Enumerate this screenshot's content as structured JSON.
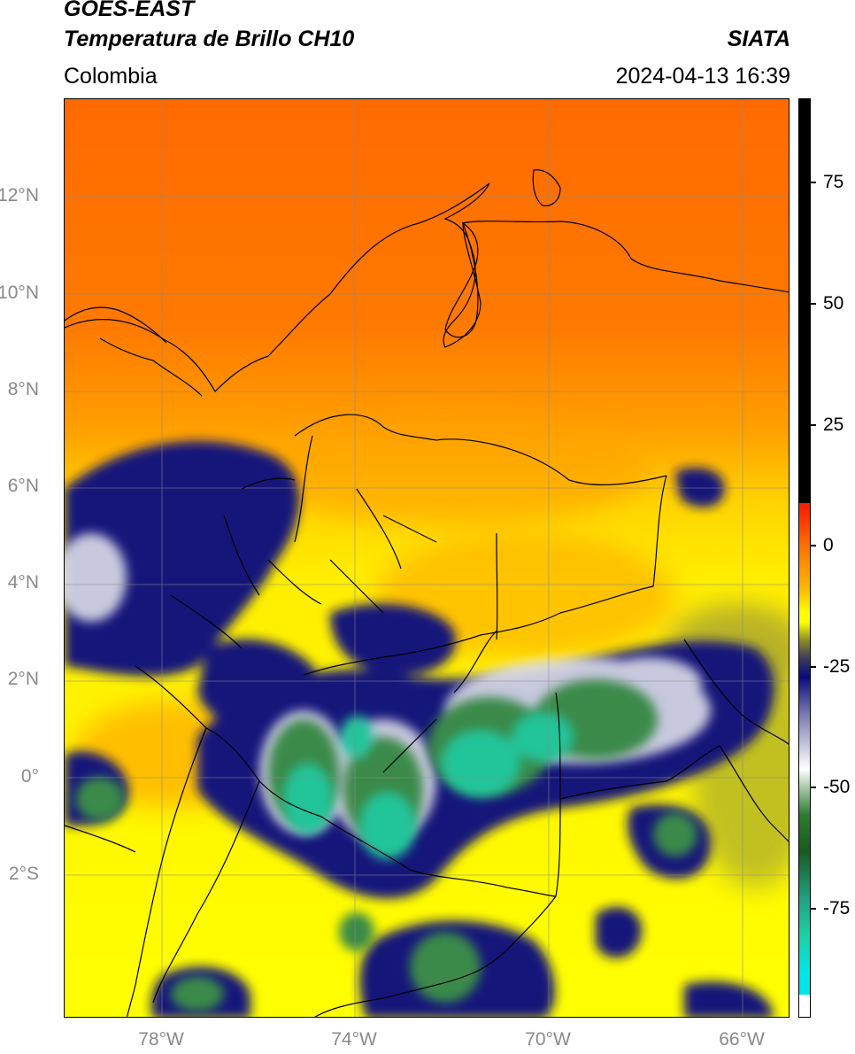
{
  "header": {
    "satellite": "GOES-EAST",
    "product": "Temperatura de Brillo CH10",
    "organization": "SIATA",
    "region": "Colombia",
    "timestamp": "2024-04-13 16:39"
  },
  "map": {
    "lat_labels": [
      "12°N",
      "10°N",
      "8°N",
      "6°N",
      "4°N",
      "2°N",
      "0°",
      "2°S"
    ],
    "lon_labels": [
      "78°W",
      "74°W",
      "70°W",
      "66°W"
    ],
    "lat_range": [
      -5,
      14
    ],
    "lon_range": [
      -80,
      -65
    ],
    "gridlines": true
  },
  "colorbar": {
    "ticks": [
      "75",
      "50",
      "25",
      "0",
      "-25",
      "-50",
      "-75"
    ],
    "colors": {
      "black": "#000000",
      "red": "#ff1a00",
      "orange": "#ff8800",
      "yellow": "#ffff00",
      "olive": "#8a8a2a",
      "navy": "#0a0a80",
      "white": "#ffffff",
      "green": "#2e7d32",
      "teal": "#1fd0a0",
      "cyan": "#00e5e5"
    }
  }
}
